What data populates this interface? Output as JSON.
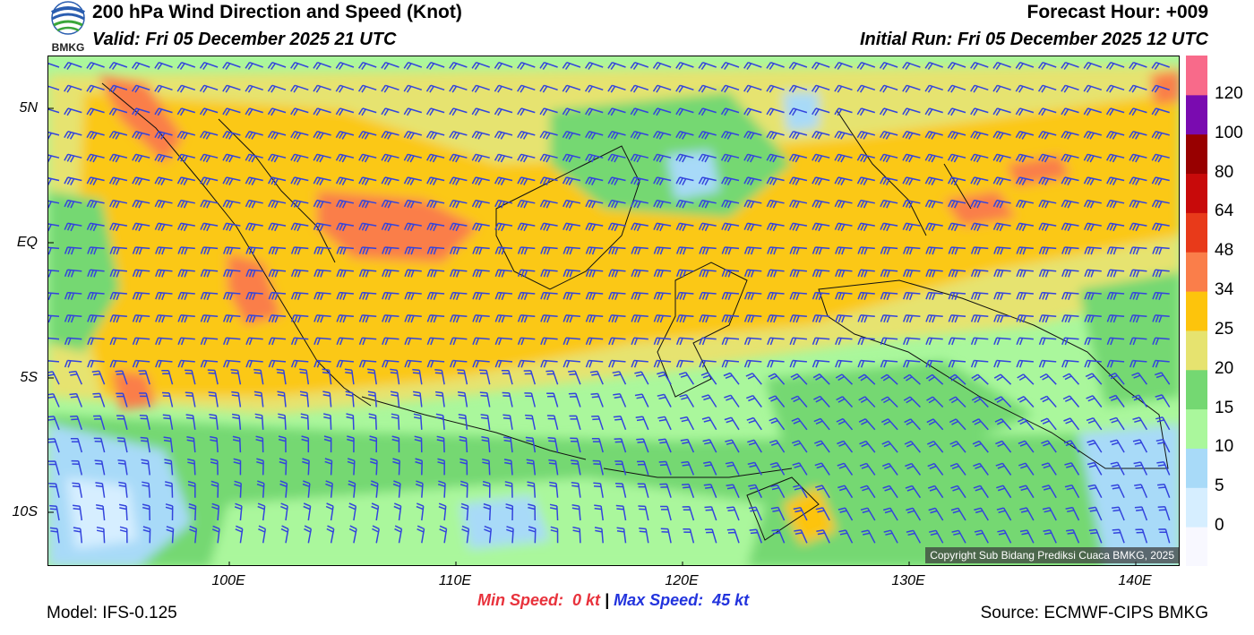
{
  "header": {
    "title": "200 hPa Wind Direction and Speed (Knot)",
    "valid": "Valid: Fri 05 December 2025 21 UTC",
    "forecast_hour": "Forecast Hour: +009",
    "initial_run": "Initial Run: Fri 05 December 2025 12 UTC"
  },
  "logo": {
    "text": "BMKG",
    "icon": "bmkg-logo-icon"
  },
  "map": {
    "lat_labels": [
      "5N",
      "EQ",
      "5S",
      "10S"
    ],
    "lon_labels": [
      "100E",
      "110E",
      "120E",
      "130E",
      "140E"
    ],
    "copyright": "Copyright Sub Bidang Prediksi Cuaca BMKG, 2025",
    "barb_color": "#3344dd"
  },
  "colorbar": {
    "labels": [
      "120",
      "100",
      "80",
      "64",
      "48",
      "34",
      "25",
      "20",
      "15",
      "10",
      "5",
      "0"
    ],
    "colors": [
      "#f8f8ff",
      "#d6eeff",
      "#a8daf8",
      "#aaf79c",
      "#74d872",
      "#e6e36f",
      "#fdc40c",
      "#fa7e4a",
      "#e83a1a",
      "#c80a0a",
      "#980000",
      "#7a0bb0",
      "#f86a8a"
    ]
  },
  "footer": {
    "min_speed": "Min Speed:  0 kt",
    "separator": "|",
    "max_speed": "Max Speed:  45 kt",
    "model": "Model: IFS-0.125",
    "source": "Source: ECMWF-CIPS BMKG"
  }
}
